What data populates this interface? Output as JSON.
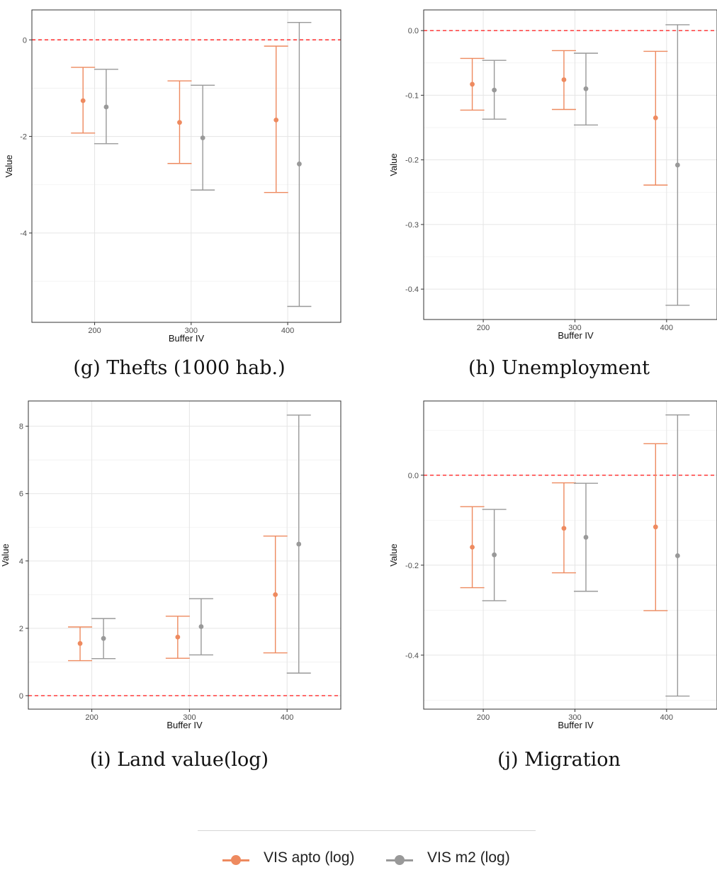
{
  "legend": {
    "series": [
      {
        "name": "VIS apto (log)",
        "color": "#EE8A5F"
      },
      {
        "name": "VIS m2 (log)",
        "color": "#999999"
      }
    ]
  },
  "chart_data": [
    {
      "type": "errorbar",
      "caption": "(g) Thefts (1000 hab.)",
      "xlabel": "Buffer IV",
      "ylabel": "Value",
      "xlim": [
        135,
        455
      ],
      "ylim": [
        -5.85,
        0.62
      ],
      "xticks": [
        200,
        300,
        400
      ],
      "yticks": [
        0,
        -2,
        -4
      ],
      "ytick_labels": [
        "0",
        "-2",
        "-4"
      ],
      "yminor": [
        -1,
        -3,
        -5
      ],
      "reference_line": 0,
      "series": [
        {
          "name": "VIS apto (log)",
          "x": [
            188,
            288,
            388
          ],
          "y": [
            -1.26,
            -1.71,
            -1.66
          ],
          "lo": [
            -1.93,
            -2.56,
            -3.16
          ],
          "hi": [
            -0.57,
            -0.85,
            -0.13
          ]
        },
        {
          "name": "VIS m2 (log)",
          "x": [
            212,
            312,
            412
          ],
          "y": [
            -1.39,
            -2.03,
            -2.57
          ],
          "lo": [
            -2.15,
            -3.11,
            -5.52
          ],
          "hi": [
            -0.61,
            -0.94,
            0.36
          ]
        }
      ]
    },
    {
      "type": "errorbar",
      "caption": "(h) Unemployment",
      "xlabel": "Buffer IV",
      "ylabel": "Value",
      "xlim": [
        135,
        455
      ],
      "ylim": [
        -0.447,
        0.032
      ],
      "xticks": [
        200,
        300,
        400
      ],
      "yticks": [
        0.0,
        -0.1,
        -0.2,
        -0.3,
        -0.4
      ],
      "ytick_labels": [
        "0.0",
        "-0.1",
        "-0.2",
        "-0.3",
        "-0.4"
      ],
      "yminor": [
        -0.05,
        -0.15,
        -0.25,
        -0.35
      ],
      "reference_line": 0,
      "series": [
        {
          "name": "VIS apto (log)",
          "x": [
            188,
            288,
            388
          ],
          "y": [
            -0.083,
            -0.076,
            -0.135
          ],
          "lo": [
            -0.123,
            -0.122,
            -0.239
          ],
          "hi": [
            -0.043,
            -0.031,
            -0.032
          ]
        },
        {
          "name": "VIS m2 (log)",
          "x": [
            212,
            312,
            412
          ],
          "y": [
            -0.092,
            -0.09,
            -0.208
          ],
          "lo": [
            -0.137,
            -0.146,
            -0.425
          ],
          "hi": [
            -0.046,
            -0.035,
            0.009
          ]
        }
      ]
    },
    {
      "type": "errorbar",
      "caption": "(i) Land value(log)",
      "xlabel": "Buffer IV",
      "ylabel": "Value",
      "xlim": [
        135,
        455
      ],
      "ylim": [
        -0.4,
        8.75
      ],
      "xticks": [
        200,
        300,
        400
      ],
      "yticks": [
        0,
        2,
        4,
        6,
        8
      ],
      "ytick_labels": [
        "0",
        "2",
        "4",
        "6",
        "8"
      ],
      "yminor": [
        1,
        3,
        5,
        7
      ],
      "reference_line": 0,
      "series": [
        {
          "name": "VIS apto (log)",
          "x": [
            188,
            288,
            388
          ],
          "y": [
            1.55,
            1.74,
            3.0
          ],
          "lo": [
            1.04,
            1.11,
            1.27
          ],
          "hi": [
            2.04,
            2.36,
            4.74
          ]
        },
        {
          "name": "VIS m2 (log)",
          "x": [
            212,
            312,
            412
          ],
          "y": [
            1.7,
            2.05,
            4.5
          ],
          "lo": [
            1.1,
            1.21,
            0.67
          ],
          "hi": [
            2.29,
            2.88,
            8.33
          ]
        }
      ]
    },
    {
      "type": "errorbar",
      "caption": "(j) Migration",
      "xlabel": "Buffer IV",
      "ylabel": "Value",
      "xlim": [
        135,
        455
      ],
      "ylim": [
        -0.52,
        0.165
      ],
      "xticks": [
        200,
        300,
        400
      ],
      "yticks": [
        0.0,
        -0.2,
        -0.4
      ],
      "ytick_labels": [
        "0.0",
        "-0.2",
        "-0.4"
      ],
      "yminor": [
        0.1,
        -0.1,
        -0.3,
        -0.5
      ],
      "reference_line": 0,
      "series": [
        {
          "name": "VIS apto (log)",
          "x": [
            188,
            288,
            388
          ],
          "y": [
            -0.16,
            -0.118,
            -0.115
          ],
          "lo": [
            -0.25,
            -0.217,
            -0.301
          ],
          "hi": [
            -0.07,
            -0.017,
            0.07
          ]
        },
        {
          "name": "VIS m2 (log)",
          "x": [
            212,
            312,
            412
          ],
          "y": [
            -0.177,
            -0.138,
            -0.179
          ],
          "lo": [
            -0.279,
            -0.258,
            -0.491
          ],
          "hi": [
            -0.076,
            -0.018,
            0.134
          ]
        }
      ]
    }
  ]
}
